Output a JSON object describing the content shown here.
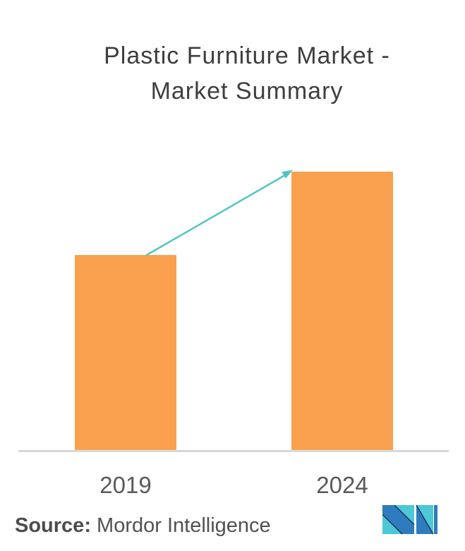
{
  "title": {
    "line1": "Plastic Furniture Market -",
    "line2": "Market Summary"
  },
  "chart_data": {
    "type": "bar",
    "title": "Plastic Furniture Market - Market Summary",
    "categories": [
      "2019",
      "2024"
    ],
    "values": [
      0.7,
      1.0
    ],
    "values_note": "No y-axis or data labels shown; values are relative bar heights (2024 bar is the tallest, 2019 bar is about 70% of it).",
    "xlabel": "",
    "ylabel": "",
    "grid": false,
    "legend": false,
    "annotation": "Teal growth arrow pointing from the top of the 2019 bar up to the top-left corner of the 2024 bar, indicating market growth."
  },
  "source": {
    "label": "Source:",
    "name": " Mordor Intelligence"
  },
  "colors": {
    "bar": "#f9a14e",
    "arrow": "#52c5c3",
    "axis": "#d8d8d8",
    "title_text": "#3e3e3e",
    "label_text": "#595959",
    "source_text": "#515154"
  },
  "logo": {
    "alt": "Mordor Intelligence logo",
    "colors": {
      "blue": "#2e7cbe",
      "teal": "#4cc8d6",
      "outline": "#1d2c51"
    }
  }
}
